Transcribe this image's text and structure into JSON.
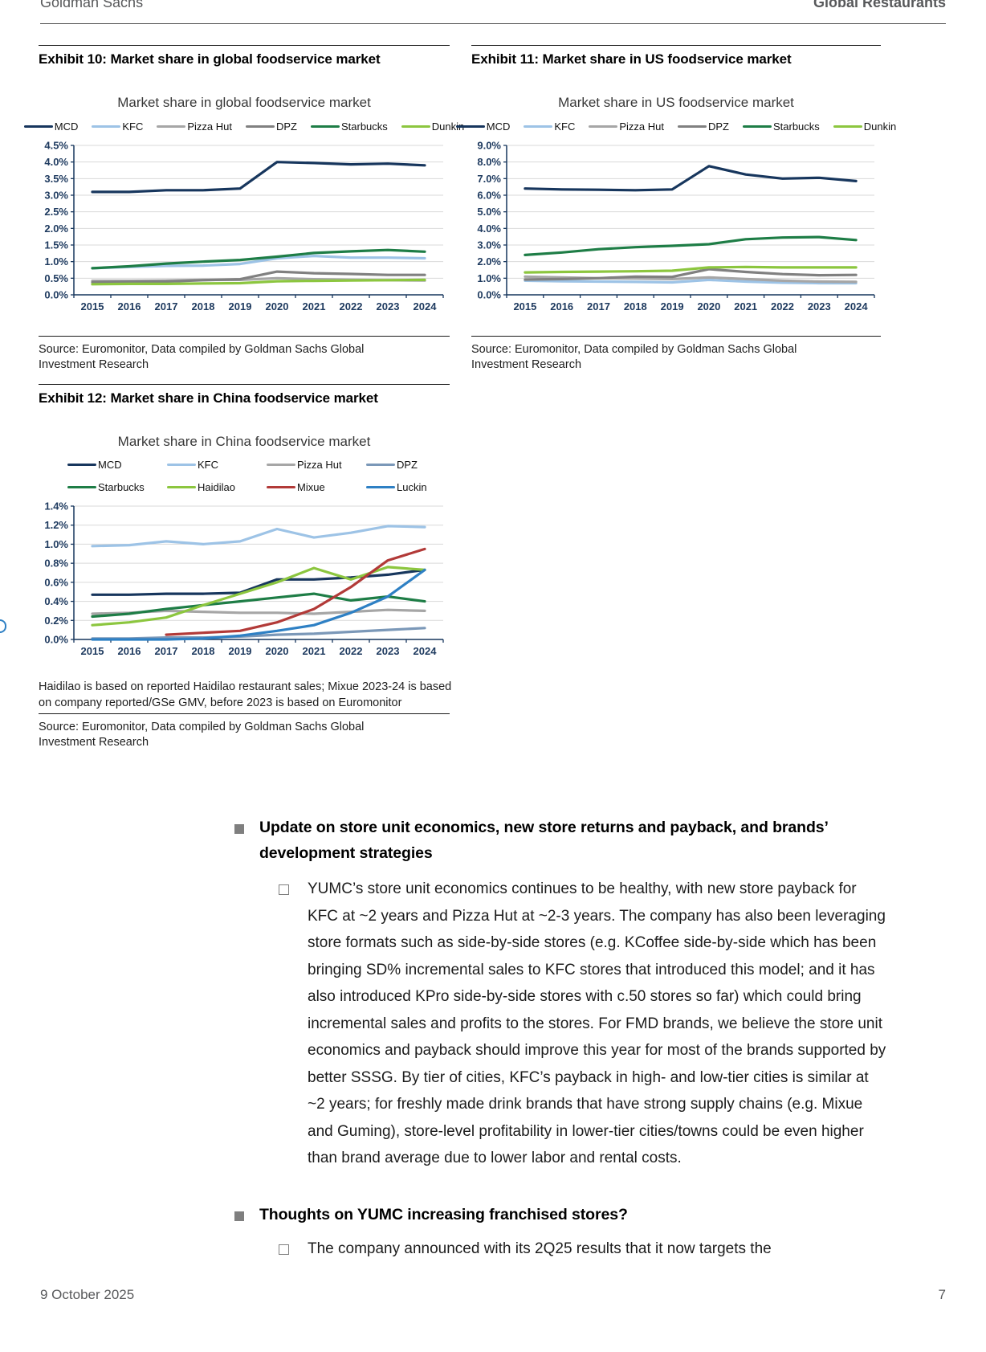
{
  "header": {
    "brand": "Goldman Sachs",
    "report_title": "Global Restaurants"
  },
  "footer": {
    "date": "9 October 2025",
    "page_number": "7"
  },
  "exhibits": [
    {
      "heading": "Exhibit 10: Market share in global foodservice market",
      "source": "Source: Euromonitor, Data compiled by Goldman Sachs Global Investment Research"
    },
    {
      "heading": "Exhibit 11: Market share in US foodservice market",
      "source": "Source: Euromonitor, Data compiled by Goldman Sachs Global Investment Research"
    },
    {
      "heading": "Exhibit 12: Market share in China foodservice market",
      "note": "Haidilao is based on reported Haidilao restaurant sales; Mixue 2023-24 is based on company reported/GSe GMV, before 2023 is based on Euromonitor",
      "source": "Source: Euromonitor, Data compiled by Goldman Sachs Global Investment Research"
    }
  ],
  "chart_data": [
    {
      "type": "line",
      "title": "Market share in global foodservice market",
      "categories": [
        "2015",
        "2016",
        "2017",
        "2018",
        "2019",
        "2020",
        "2021",
        "2022",
        "2023",
        "2024"
      ],
      "ylim": [
        0,
        4.5
      ],
      "ytick": 0.5,
      "grid": true,
      "legend_position": "top",
      "series": [
        {
          "name": "MCD",
          "color": "#17365d",
          "values": [
            3.1,
            3.1,
            3.15,
            3.15,
            3.2,
            4.0,
            3.97,
            3.93,
            3.95,
            3.9
          ]
        },
        {
          "name": "KFC",
          "color": "#9dc3e6",
          "values": [
            0.8,
            0.84,
            0.87,
            0.88,
            0.93,
            1.1,
            1.17,
            1.12,
            1.12,
            1.1
          ]
        },
        {
          "name": "Pizza Hut",
          "color": "#a6a6a6",
          "values": [
            0.42,
            0.42,
            0.43,
            0.45,
            0.45,
            0.5,
            0.47,
            0.45,
            0.44,
            0.43
          ]
        },
        {
          "name": "DPZ",
          "color": "#808080",
          "values": [
            0.38,
            0.39,
            0.4,
            0.44,
            0.47,
            0.7,
            0.65,
            0.63,
            0.6,
            0.6
          ]
        },
        {
          "name": "Starbucks",
          "color": "#1e7d46",
          "values": [
            0.8,
            0.86,
            0.94,
            1.0,
            1.05,
            1.15,
            1.26,
            1.31,
            1.35,
            1.3
          ]
        },
        {
          "name": "Dunkin",
          "color": "#8cc63f",
          "values": [
            0.32,
            0.33,
            0.33,
            0.34,
            0.35,
            0.41,
            0.42,
            0.43,
            0.44,
            0.45
          ]
        }
      ]
    },
    {
      "type": "line",
      "title": "Market share in US foodservice market",
      "categories": [
        "2015",
        "2016",
        "2017",
        "2018",
        "2019",
        "2020",
        "2021",
        "2022",
        "2023",
        "2024"
      ],
      "ylim": [
        0,
        9.0
      ],
      "ytick": 1.0,
      "grid": true,
      "legend_position": "top",
      "series": [
        {
          "name": "MCD",
          "color": "#17365d",
          "values": [
            6.4,
            6.35,
            6.33,
            6.3,
            6.35,
            7.75,
            7.25,
            7.0,
            7.05,
            6.85
          ]
        },
        {
          "name": "KFC",
          "color": "#9dc3e6",
          "values": [
            0.85,
            0.82,
            0.8,
            0.78,
            0.75,
            0.9,
            0.8,
            0.73,
            0.7,
            0.7
          ]
        },
        {
          "name": "Pizza Hut",
          "color": "#a6a6a6",
          "values": [
            1.1,
            1.05,
            1.0,
            0.98,
            0.95,
            1.05,
            0.95,
            0.85,
            0.8,
            0.78
          ]
        },
        {
          "name": "DPZ",
          "color": "#808080",
          "values": [
            0.92,
            0.95,
            1.0,
            1.1,
            1.08,
            1.55,
            1.38,
            1.25,
            1.18,
            1.2
          ]
        },
        {
          "name": "Starbucks",
          "color": "#1e7d46",
          "values": [
            2.4,
            2.55,
            2.75,
            2.87,
            2.95,
            3.05,
            3.35,
            3.45,
            3.48,
            3.3
          ]
        },
        {
          "name": "Dunkin",
          "color": "#8cc63f",
          "values": [
            1.35,
            1.38,
            1.4,
            1.42,
            1.45,
            1.65,
            1.68,
            1.65,
            1.65,
            1.65
          ]
        }
      ]
    },
    {
      "type": "line",
      "title": "Market share in China foodservice market",
      "categories": [
        "2015",
        "2016",
        "2017",
        "2018",
        "2019",
        "2020",
        "2021",
        "2022",
        "2023",
        "2024"
      ],
      "ylim": [
        0,
        1.4
      ],
      "ytick": 0.2,
      "grid": true,
      "legend_position": "top",
      "series": [
        {
          "name": "MCD",
          "color": "#17365d",
          "values": [
            0.47,
            0.47,
            0.48,
            0.48,
            0.49,
            0.63,
            0.63,
            0.65,
            0.68,
            0.73
          ]
        },
        {
          "name": "KFC",
          "color": "#9dc3e6",
          "values": [
            0.98,
            0.99,
            1.03,
            1.0,
            1.03,
            1.16,
            1.07,
            1.12,
            1.19,
            1.18
          ]
        },
        {
          "name": "Pizza Hut",
          "color": "#a6a6a6",
          "values": [
            0.27,
            0.28,
            0.3,
            0.29,
            0.28,
            0.28,
            0.27,
            0.29,
            0.31,
            0.3
          ]
        },
        {
          "name": "DPZ",
          "color": "#7b98b8",
          "values": [
            0.01,
            0.01,
            0.02,
            0.02,
            0.03,
            0.05,
            0.06,
            0.08,
            0.1,
            0.12
          ]
        },
        {
          "name": "Starbucks",
          "color": "#1e7d46",
          "values": [
            0.24,
            0.27,
            0.32,
            0.36,
            0.4,
            0.44,
            0.48,
            0.41,
            0.45,
            0.4
          ]
        },
        {
          "name": "Haidilao",
          "color": "#8cc63f",
          "values": [
            0.15,
            0.18,
            0.23,
            0.36,
            0.48,
            0.6,
            0.75,
            0.63,
            0.76,
            0.73
          ]
        },
        {
          "name": "Mixue",
          "color": "#b23a38",
          "values": [
            null,
            null,
            0.05,
            0.07,
            0.09,
            0.18,
            0.32,
            0.55,
            0.83,
            0.95
          ]
        },
        {
          "name": "Luckin",
          "color": "#2e80c4",
          "values": [
            0.0,
            0.0,
            0.0,
            0.01,
            0.04,
            0.09,
            0.15,
            0.28,
            0.45,
            0.73
          ]
        }
      ]
    }
  ],
  "body": {
    "bullets": [
      {
        "title": "Update on store unit economics, new store returns and payback, and brands’ development strategies",
        "text": "YUMC’s store unit economics continues to be healthy, with new store payback for KFC at ~2 years and Pizza Hut at ~2-3 years. The company has also been leveraging store formats such as side-by-side stores (e.g. KCoffee side-by-side which has been bringing SD% incremental sales to KFC stores that introduced this model; and it has also introduced KPro side-by-side stores with c.50 stores so far) which could bring incremental sales and profits to the stores. For FMD brands, we believe the store unit economics and payback should improve this year for most of the brands supported by better SSSG. By tier of cities, KFC’s payback in high- and low-tier cities is similar at ~2 years; for freshly made drink brands that have strong supply chains (e.g. Mixue and Guming), store-level profitability in lower-tier cities/towns could be even higher than brand average due to lower labor and rental costs."
      },
      {
        "title": "Thoughts on YUMC increasing franchised stores?",
        "text": "The company announced with its 2Q25 results that it now targets the"
      }
    ]
  }
}
